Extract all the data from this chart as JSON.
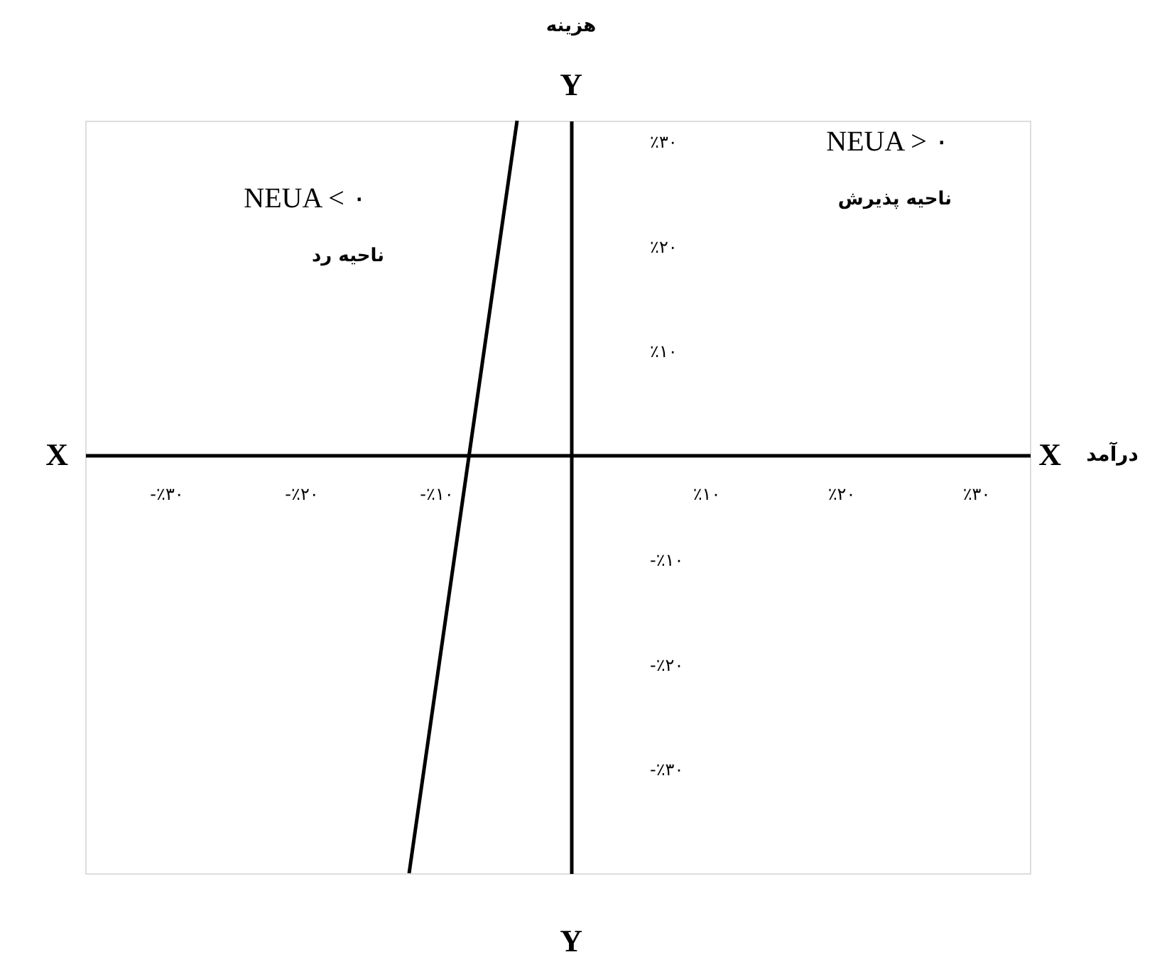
{
  "chart_data": {
    "type": "line",
    "xlabel": "درآمد",
    "ylabel": "هزینه",
    "xlim": [
      -36,
      34
    ],
    "ylim": [
      -40,
      32
    ],
    "xticks": [
      {
        "value": -30,
        "label": "-٪۳۰"
      },
      {
        "value": -20,
        "label": "-٪۲۰"
      },
      {
        "value": -10,
        "label": "-٪۱۰"
      },
      {
        "value": 10,
        "label": "٪۱۰"
      },
      {
        "value": 20,
        "label": "٪۲۰"
      },
      {
        "value": 30,
        "label": "٪۳۰"
      }
    ],
    "yticks": [
      {
        "value": -30,
        "label": "-٪۳۰"
      },
      {
        "value": -20,
        "label": "-٪۲۰"
      },
      {
        "value": -10,
        "label": "-٪۱۰"
      },
      {
        "value": 10,
        "label": "٪۱۰"
      },
      {
        "value": 20,
        "label": "٪۲۰"
      },
      {
        "value": 30,
        "label": "٪۳۰"
      }
    ],
    "series": [
      {
        "color": "#000000",
        "x": [
          -12,
          -4
        ],
        "values": [
          -40,
          32
        ]
      }
    ],
    "annotations": [
      "Y",
      "Y",
      "X",
      "X",
      "NEUA < ۰",
      "ناحیه رد",
      "NEUA > ۰",
      "ناحیه پذیرش"
    ],
    "grid": false
  }
}
